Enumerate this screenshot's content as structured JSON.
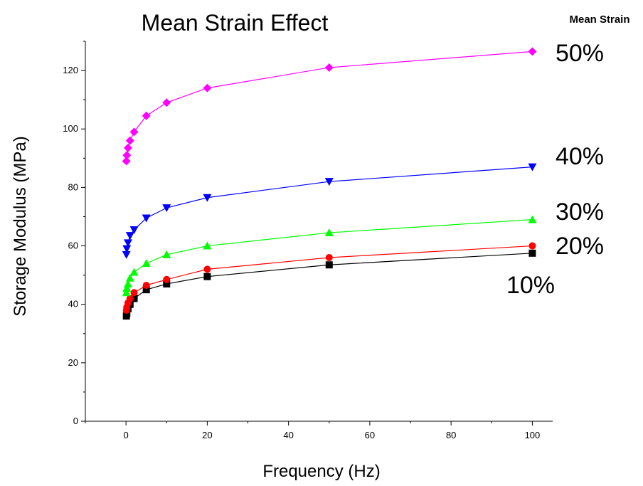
{
  "chart_data": {
    "type": "line",
    "title": "Mean Strain Effect",
    "xlabel": "Frequency (Hz)",
    "ylabel": "Storage Modulus (MPa)",
    "legend_title": "Mean Strain",
    "xlim": [
      -10,
      105
    ],
    "ylim": [
      0,
      130
    ],
    "x_ticks": [
      0,
      20,
      40,
      60,
      80,
      100
    ],
    "y_ticks": [
      0,
      20,
      40,
      60,
      80,
      100,
      120
    ],
    "grid": false,
    "series": [
      {
        "name": "10%",
        "color": "#000000",
        "marker": "square",
        "x": [
          0.1,
          0.2,
          0.5,
          1,
          2,
          5,
          10,
          20,
          50,
          100
        ],
        "y": [
          36,
          37,
          38.5,
          40,
          42,
          45,
          47,
          49.5,
          53.5,
          57.5
        ]
      },
      {
        "name": "20%",
        "color": "#ff0000",
        "marker": "circle",
        "x": [
          0.1,
          0.2,
          0.5,
          1,
          2,
          5,
          10,
          20,
          50,
          100
        ],
        "y": [
          38,
          39,
          40.5,
          42,
          44,
          46.5,
          48.5,
          52,
          56,
          60
        ]
      },
      {
        "name": "30%",
        "color": "#00ff00",
        "marker": "triangle-up",
        "x": [
          0.1,
          0.2,
          0.5,
          1,
          2,
          5,
          10,
          20,
          50,
          100
        ],
        "y": [
          44,
          45.5,
          47,
          49,
          51,
          54,
          57,
          60,
          64.5,
          69
        ]
      },
      {
        "name": "40%",
        "color": "#0000ff",
        "marker": "triangle-down",
        "x": [
          0.1,
          0.2,
          0.5,
          1,
          2,
          5,
          10,
          20,
          50,
          100
        ],
        "y": [
          57,
          59,
          61,
          63.5,
          65.5,
          69.5,
          73,
          76.5,
          82,
          87
        ]
      },
      {
        "name": "50%",
        "color": "#ff00ff",
        "marker": "diamond",
        "x": [
          0.1,
          0.2,
          0.5,
          1,
          2,
          5,
          10,
          20,
          50,
          100
        ],
        "y": [
          89,
          91,
          93.5,
          96,
          99,
          104.5,
          109,
          114,
          121,
          126.5
        ]
      }
    ]
  }
}
